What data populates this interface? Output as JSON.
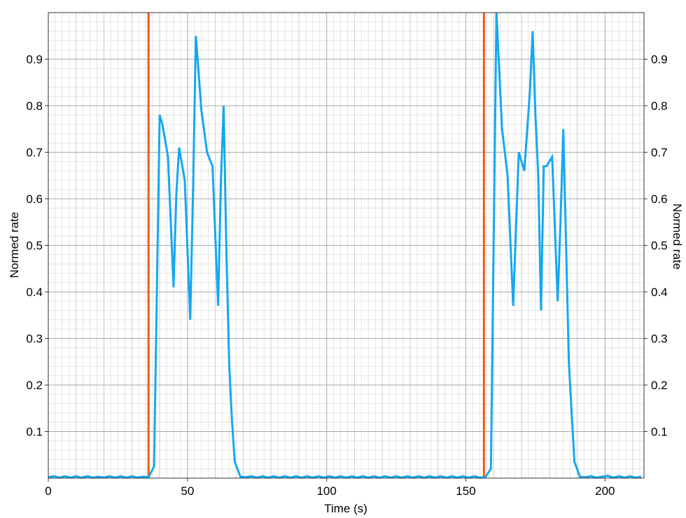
{
  "chart_data": {
    "type": "line",
    "xlabel": "Time (s)",
    "ylabel": "Normed rate",
    "ylabel_right": "Normed rate",
    "xlim": [
      0,
      214
    ],
    "ylim": [
      0,
      1.0
    ],
    "xticks": [
      0,
      50,
      100,
      150,
      200
    ],
    "yticks": [
      0.1,
      0.2,
      0.3,
      0.4,
      0.5,
      0.6,
      0.7,
      0.8,
      0.9
    ],
    "grid": true,
    "legend": "none",
    "vertical_markers": {
      "color": "#f05a14",
      "x": [
        36,
        156.5
      ]
    },
    "series": [
      {
        "color": "#14a8f0",
        "x": [
          0,
          2,
          4,
          6,
          8,
          10,
          12,
          14,
          16,
          18,
          20,
          22,
          24,
          26,
          28,
          30,
          32,
          34,
          36,
          38,
          40,
          41,
          43,
          45,
          46,
          47,
          49,
          51,
          52,
          53,
          55,
          57,
          59,
          61,
          62,
          63,
          64,
          65,
          66,
          67,
          69,
          71,
          73,
          75,
          77,
          79,
          81,
          83,
          85,
          87,
          89,
          91,
          93,
          95,
          97,
          99,
          101,
          103,
          105,
          107,
          109,
          111,
          113,
          115,
          117,
          119,
          121,
          123,
          125,
          127,
          129,
          131,
          133,
          135,
          137,
          139,
          141,
          143,
          145,
          147,
          149,
          151,
          153,
          155,
          157,
          159,
          161,
          163,
          165,
          167,
          169,
          171,
          173,
          174,
          175,
          176,
          177,
          178,
          179,
          181,
          183,
          184,
          185,
          186,
          187,
          189,
          191,
          193,
          195,
          197,
          199,
          201,
          203,
          205,
          207,
          209,
          211,
          213
        ],
        "y": [
          0.002,
          0.004,
          0.001,
          0.004,
          0.001,
          0.004,
          0.001,
          0.004,
          0.001,
          0.003,
          0.001,
          0.004,
          0.001,
          0.004,
          0.001,
          0.004,
          0.001,
          0.003,
          0.002,
          0.025,
          0.78,
          0.76,
          0.69,
          0.41,
          0.61,
          0.71,
          0.64,
          0.34,
          0.62,
          0.95,
          0.79,
          0.7,
          0.67,
          0.37,
          0.64,
          0.8,
          0.48,
          0.24,
          0.12,
          0.035,
          0.003,
          0.002,
          0.004,
          0.001,
          0.004,
          0.001,
          0.004,
          0.001,
          0.004,
          0.001,
          0.004,
          0.001,
          0.004,
          0.001,
          0.004,
          0.001,
          0.004,
          0.001,
          0.004,
          0.001,
          0.004,
          0.001,
          0.004,
          0.001,
          0.004,
          0.001,
          0.004,
          0.001,
          0.004,
          0.001,
          0.004,
          0.001,
          0.004,
          0.001,
          0.004,
          0.001,
          0.004,
          0.001,
          0.004,
          0.001,
          0.004,
          0.001,
          0.004,
          0.001,
          0.002,
          0.02,
          1.0,
          0.75,
          0.65,
          0.37,
          0.7,
          0.66,
          0.83,
          0.96,
          0.78,
          0.65,
          0.36,
          0.67,
          0.67,
          0.69,
          0.38,
          0.55,
          0.75,
          0.5,
          0.25,
          0.035,
          0.003,
          0.002,
          0.004,
          0.001,
          0.003,
          0.005,
          0.001,
          0.004,
          0.001,
          0.004,
          0.001,
          0.003
        ]
      }
    ]
  }
}
